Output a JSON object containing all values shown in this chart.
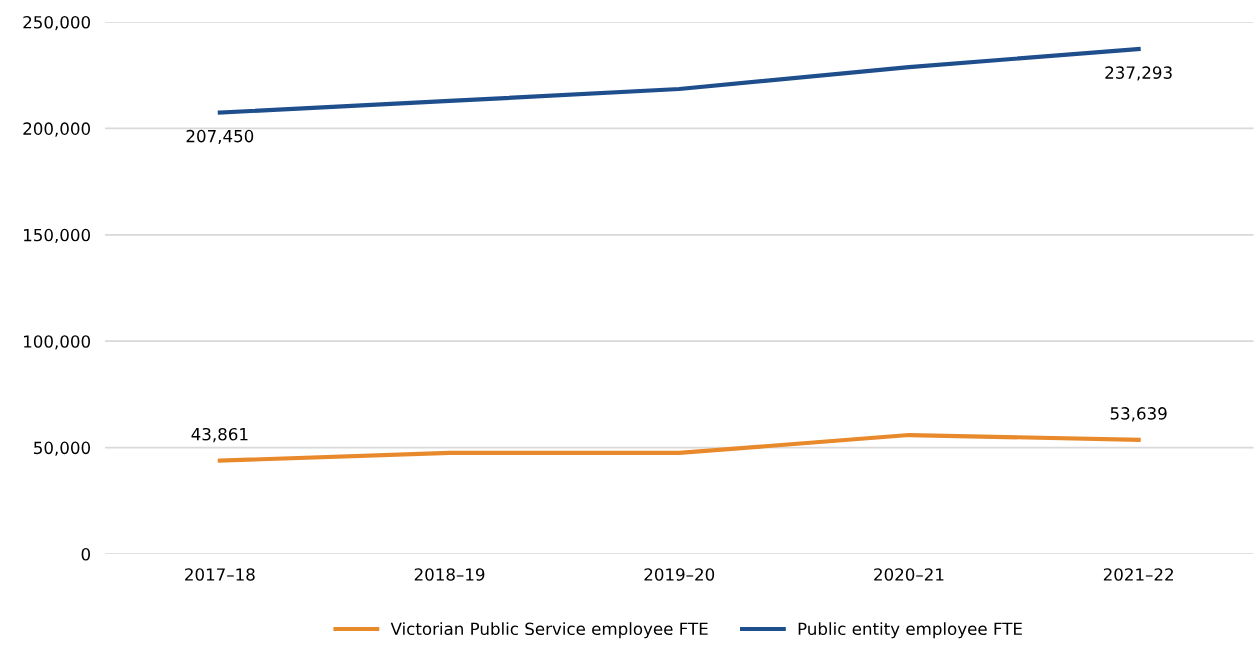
{
  "chart_data": {
    "type": "line",
    "categories": [
      "2017–18",
      "2018–19",
      "2019–20",
      "2020–21",
      "2021–22"
    ],
    "series": [
      {
        "name": "Victorian Public Service employee FTE",
        "color": "#e8892b",
        "values": [
          43861,
          47500,
          47500,
          55900,
          53639
        ],
        "value_labels": [
          "43,861",
          null,
          null,
          null,
          "53,639"
        ]
      },
      {
        "name": "Public entity employee FTE",
        "color": "#1f4e8c",
        "values": [
          207450,
          212900,
          218500,
          228800,
          237293
        ],
        "value_labels": [
          "207,450",
          null,
          null,
          null,
          "237,293"
        ]
      }
    ],
    "ylim": [
      0,
      250000
    ],
    "yticks": [
      {
        "value": 0,
        "label": "0"
      },
      {
        "value": 50000,
        "label": "50,000"
      },
      {
        "value": 100000,
        "label": "100,000"
      },
      {
        "value": 150000,
        "label": "150,000"
      },
      {
        "value": 200000,
        "label": "200,000"
      },
      {
        "value": 250000,
        "label": "250,000"
      }
    ],
    "grid": "y",
    "legend": "bottom",
    "marker": "none",
    "line_style": "solid"
  }
}
